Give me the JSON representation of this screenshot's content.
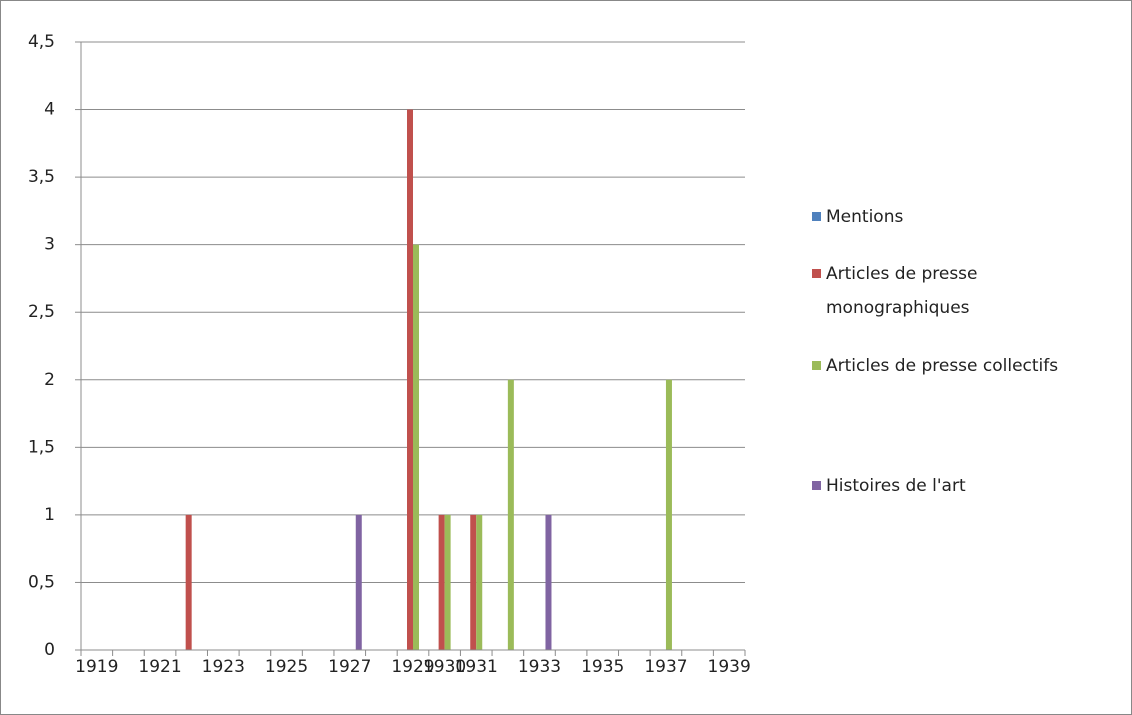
{
  "chart_data": {
    "type": "bar",
    "categories": [
      "1919",
      null,
      "1921",
      null,
      "1923",
      null,
      "1925",
      null,
      "1927",
      null,
      "1929",
      "1930",
      "1931",
      null,
      "1933",
      null,
      "1935",
      null,
      "1937",
      null,
      "1939"
    ],
    "series": [
      {
        "name": "Mentions",
        "color": "#4f81bd",
        "values": [
          0,
          0,
          0,
          0,
          0,
          0,
          0,
          0,
          0,
          0,
          0,
          0,
          0,
          0,
          0,
          0,
          0,
          0,
          0,
          0,
          0
        ]
      },
      {
        "name": "Articles de presse monographiques",
        "color": "#c0504d",
        "values": [
          0,
          0,
          0,
          1,
          0,
          0,
          0,
          0,
          0,
          0,
          4,
          1,
          1,
          0,
          0,
          0,
          0,
          0,
          0,
          0,
          0
        ]
      },
      {
        "name": "Articles de presse collectifs",
        "color": "#9bbb59",
        "values": [
          0,
          0,
          0,
          0,
          0,
          0,
          0,
          0,
          0,
          0,
          3,
          1,
          1,
          2,
          0,
          0,
          0,
          0,
          2,
          0,
          0
        ]
      },
      {
        "name": "Histoires de l'art",
        "color": "#8064a2",
        "values": [
          0,
          0,
          0,
          0,
          0,
          0,
          0,
          0,
          1,
          0,
          0,
          0,
          0,
          0,
          1,
          0,
          0,
          0,
          0,
          0,
          0
        ]
      }
    ],
    "ylim": [
      0,
      4.5
    ],
    "yticks": [
      0,
      {
        "value": 0.5,
        "label": "0,5"
      },
      1,
      {
        "value": 1.5,
        "label": "1,5"
      },
      2,
      {
        "value": 2.5,
        "label": "2,5"
      },
      3,
      {
        "value": 3.5,
        "label": "3,5"
      },
      4,
      {
        "value": 4.5,
        "label": "4,5"
      }
    ],
    "grid": true,
    "legend": "right"
  }
}
